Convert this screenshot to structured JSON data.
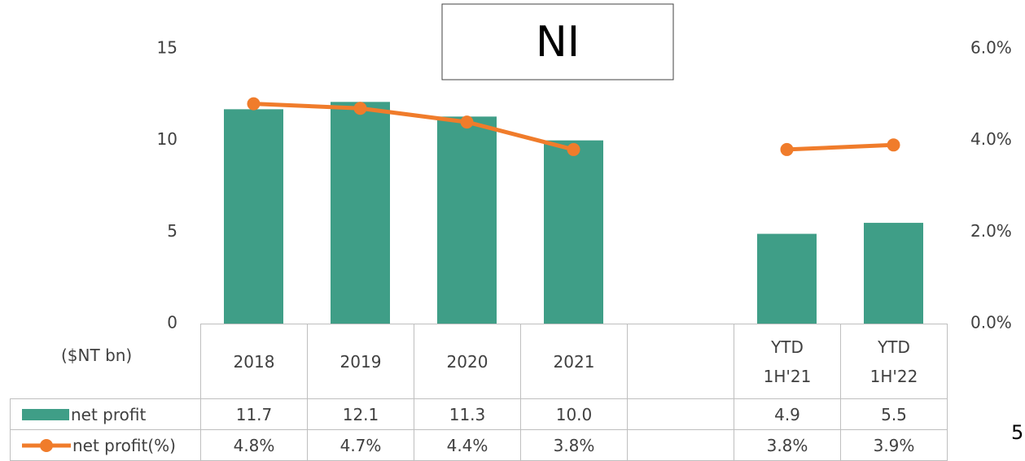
{
  "chart_data": {
    "type": "bar-line",
    "title": "NI",
    "y_label": "($NT bn)",
    "page_number": "5",
    "categories": [
      "2018",
      "2019",
      "2020",
      "2021",
      null,
      "YTD 1H'21",
      "YTD 1H'22"
    ],
    "ylim": [
      0,
      15
    ],
    "yticks": [
      0,
      5,
      10,
      15
    ],
    "y2lim": [
      0,
      6
    ],
    "y2ticks": [
      {
        "value": 0,
        "label": "0.0%"
      },
      {
        "value": 2,
        "label": "2.0%"
      },
      {
        "value": 4,
        "label": "4.0%"
      },
      {
        "value": 6,
        "label": "6.0%"
      }
    ],
    "series": [
      {
        "name": "net profit",
        "type": "bar",
        "color": "#3f9e87",
        "values": [
          11.7,
          12.1,
          11.3,
          10.0,
          null,
          4.9,
          5.5
        ],
        "value_labels": [
          "11.7",
          "12.1",
          "11.3",
          "10.0",
          null,
          "4.9",
          "5.5"
        ]
      },
      {
        "name": "net profit(%)",
        "type": "line",
        "axis": "y2",
        "color": "#f07c2b",
        "values": [
          4.8,
          4.7,
          4.4,
          3.8,
          null,
          3.8,
          3.9
        ],
        "value_labels": [
          "4.8%",
          "4.7%",
          "4.4%",
          "3.8%",
          null,
          "3.8%",
          "3.9%"
        ]
      }
    ]
  }
}
